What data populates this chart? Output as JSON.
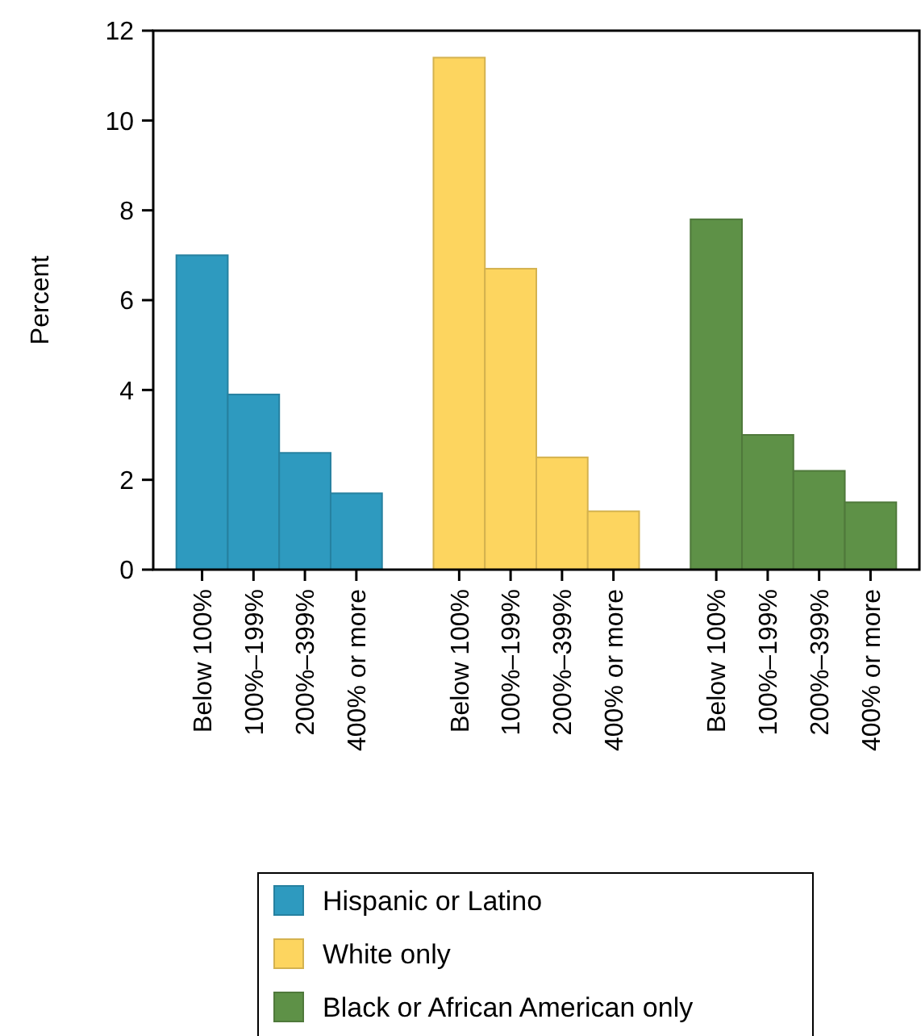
{
  "chart_data": {
    "type": "bar",
    "ylabel": "Percent",
    "categories": [
      "Below 100%",
      "100%–199%",
      "200%–399%",
      "400% or more",
      "Below 100%",
      "100%–199%",
      "200%–399%",
      "400% or more",
      "Below 100%",
      "100%–199%",
      "200%–399%",
      "400% or more"
    ],
    "series": [
      {
        "name": "Hispanic or Latino",
        "color": "#2e9abf",
        "values": [
          7.0,
          3.9,
          2.6,
          1.7,
          null,
          null,
          null,
          null,
          null,
          null,
          null,
          null
        ]
      },
      {
        "name": "White only",
        "color": "#fdd55f",
        "values": [
          null,
          null,
          null,
          null,
          11.4,
          6.7,
          2.5,
          1.3,
          null,
          null,
          null,
          null
        ]
      },
      {
        "name": "Black or African American only",
        "color": "#5e9147",
        "values": [
          null,
          null,
          null,
          null,
          null,
          null,
          null,
          null,
          7.8,
          3.0,
          2.2,
          1.5
        ]
      }
    ],
    "ylim": [
      0,
      12
    ],
    "yticks": [
      0,
      2,
      4,
      6,
      8,
      10,
      12
    ],
    "grid": false,
    "legend": "bottom"
  }
}
